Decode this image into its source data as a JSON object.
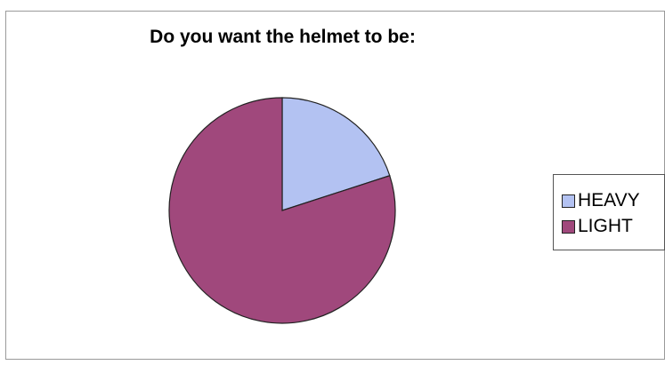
{
  "chart_data": {
    "type": "pie",
    "title": "Do you want the helmet to be:",
    "categories": [
      "HEAVY",
      "LIGHT"
    ],
    "values": [
      20,
      80
    ],
    "colors": [
      "#b3c2f2",
      "#a0487c"
    ],
    "legend_position": "right",
    "start_angle_deg": 0,
    "direction": "clockwise"
  }
}
